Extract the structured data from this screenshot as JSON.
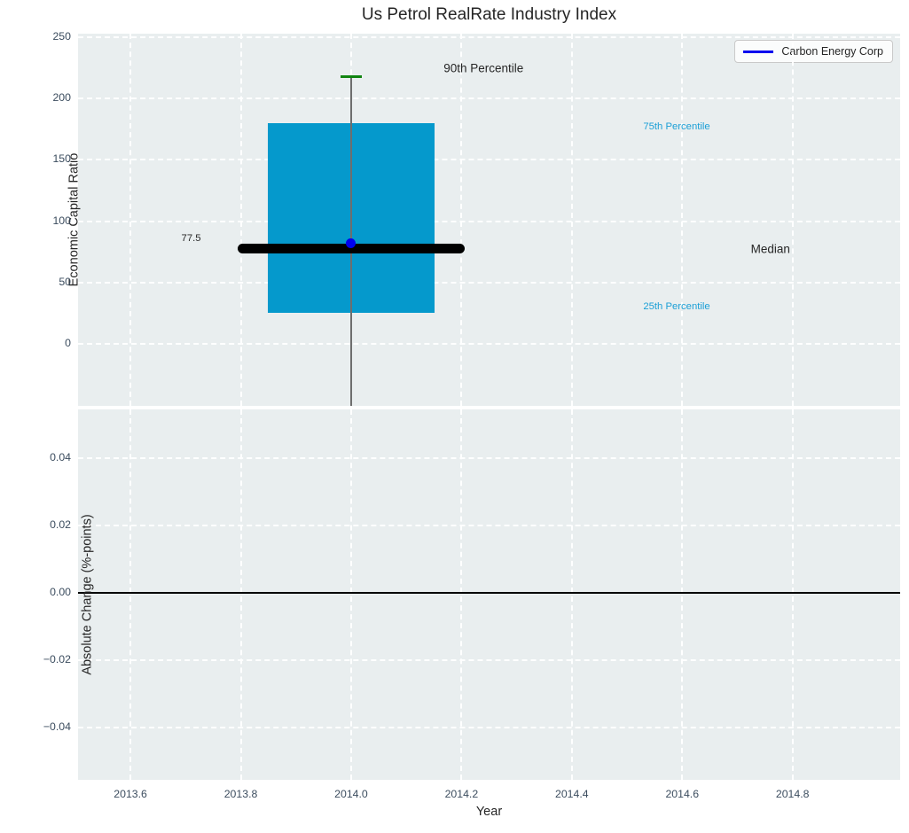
{
  "colors": {
    "plot_bg": "#e9eeef",
    "grid": "#ffffff",
    "box_fill": "#0599cc",
    "median_line": "#000000",
    "whisker": "#6e6e6e",
    "cap": "#118411",
    "company": "#0000ee",
    "percentile_label": "#1b9fd6",
    "tick_label": "#3b4c5e",
    "text": "#262626",
    "zero_line": "#000000"
  },
  "chart_data": {
    "type": "boxplot",
    "title": "Us Petrol RealRate Industry Index",
    "xlabel": "Year",
    "xlim": [
      2013.505,
      2014.995
    ],
    "xticks": [
      2013.6,
      2013.8,
      2014.0,
      2014.2,
      2014.4,
      2014.6,
      2014.8
    ],
    "xtick_labels": [
      "2013.6",
      "2013.8",
      "2014.0",
      "2014.2",
      "2014.4",
      "2014.6",
      "2014.8"
    ],
    "subplots": [
      {
        "name": "economic-capital-ratio",
        "ylabel": "Economic Capital Ratio",
        "ylim": [
          -50.6,
          252.9
        ],
        "yticks": [
          0,
          50,
          100,
          150,
          200,
          250
        ],
        "ytick_labels": [
          "0",
          "50",
          "100",
          "150",
          "200",
          "250"
        ],
        "grid": true,
        "box": {
          "x": 2014.0,
          "q1": 25,
          "median": 77.5,
          "q3": 180,
          "p90": 218,
          "whisker_low_clipped_at_axis": true,
          "box_halfwidth": 0.151,
          "median_halfwidth": 0.205,
          "cap_halfwidth": 0.02,
          "company_point": {
            "x": 2014.0,
            "y": 82,
            "series": "Carbon Energy Corp"
          }
        },
        "annotations": [
          {
            "label": "90th Percentile",
            "x": 2014.24,
            "y": 225,
            "color_key": "text",
            "size": 13.5
          },
          {
            "label": "75th Percentile",
            "x": 2014.59,
            "y": 177,
            "color_key": "percentile_label",
            "size": 11.3
          },
          {
            "label": "Median",
            "x": 2014.76,
            "y": 77,
            "color_key": "text",
            "size": 13.5
          },
          {
            "label": "25th Percentile",
            "x": 2014.59,
            "y": 30,
            "color_key": "percentile_label",
            "size": 11.3
          },
          {
            "label": "77.5",
            "x": 2013.71,
            "y": 86,
            "color_key": "text",
            "size": 11.3
          }
        ],
        "legend": {
          "label": "Carbon Energy Corp",
          "position": "upper right"
        }
      },
      {
        "name": "absolute-change",
        "ylabel": "Absolute Change (%-points)",
        "ylim": [
          -0.0555,
          0.0545
        ],
        "yticks": [
          0.04,
          0.02,
          0.0,
          -0.02,
          -0.04
        ],
        "ytick_labels": [
          "0.04",
          "0.02",
          "0.00",
          "−0.02",
          "−0.04"
        ],
        "grid": true,
        "zero_line": 0.0
      }
    ]
  }
}
